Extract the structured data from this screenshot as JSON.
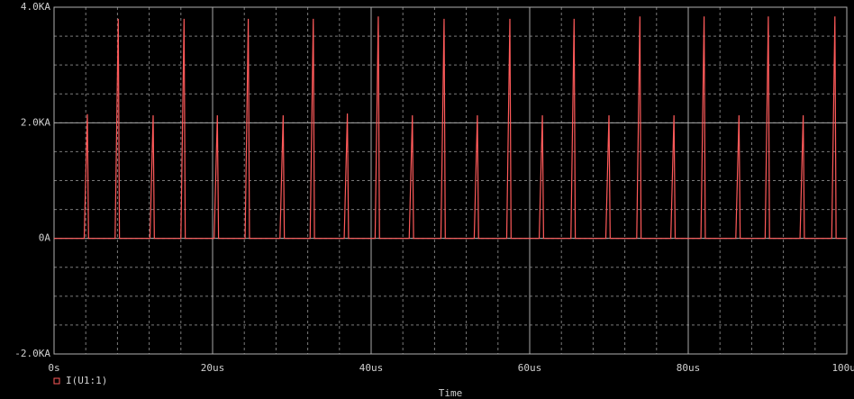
{
  "chart_data": {
    "type": "line",
    "xlabel": "Time",
    "x": [
      0,
      3.8,
      4.2,
      4.35,
      7.7,
      8.1,
      8.25,
      12.1,
      12.5,
      12.65,
      16.0,
      16.4,
      16.55,
      20.2,
      20.6,
      20.75,
      24.1,
      24.5,
      24.65,
      28.5,
      28.9,
      29.05,
      32.3,
      32.7,
      32.85,
      36.6,
      37.0,
      37.15,
      40.5,
      40.9,
      41.05,
      44.8,
      45.2,
      45.35,
      48.8,
      49.2,
      49.35,
      53.0,
      53.4,
      53.55,
      57.1,
      57.5,
      57.65,
      61.2,
      61.6,
      61.75,
      65.2,
      65.6,
      65.75,
      69.6,
      70.0,
      70.15,
      73.5,
      73.9,
      74.05,
      77.8,
      78.2,
      78.35,
      81.6,
      82.0,
      82.15,
      86.0,
      86.4,
      86.55,
      89.7,
      90.1,
      90.25,
      94.1,
      94.5,
      94.65,
      98.1,
      98.5,
      98.65,
      100
    ],
    "series": [
      {
        "name": "I(U1:1)",
        "color": "#ff5a5a",
        "values": [
          0,
          0,
          2.15,
          0,
          0,
          3.8,
          0,
          0,
          2.13,
          0,
          0,
          3.8,
          0,
          0,
          2.13,
          0,
          0,
          3.8,
          0,
          0,
          2.13,
          0,
          0,
          3.8,
          0,
          0,
          2.16,
          0,
          0,
          3.84,
          0,
          0,
          2.13,
          0,
          0,
          3.8,
          0,
          0,
          2.13,
          0,
          0,
          3.8,
          0,
          0,
          2.13,
          0,
          0,
          3.8,
          0,
          0,
          2.13,
          0,
          0,
          3.84,
          0,
          0,
          2.13,
          0,
          0,
          3.84,
          0,
          0,
          2.13,
          0,
          0,
          3.84,
          0,
          0,
          2.13,
          0,
          0,
          3.84,
          0,
          0
        ]
      }
    ],
    "xlim": [
      0,
      100
    ],
    "xticks": [
      {
        "value": 0,
        "label": "0s"
      },
      {
        "value": 20,
        "label": "20us"
      },
      {
        "value": 40,
        "label": "40us"
      },
      {
        "value": 60,
        "label": "60us"
      },
      {
        "value": 80,
        "label": "80us"
      },
      {
        "value": 100,
        "label": "100us"
      }
    ],
    "ylim": [
      -2,
      4
    ],
    "yticks": [
      {
        "value": -2,
        "label": "-2.0KA"
      },
      {
        "value": 0,
        "label": "0A"
      },
      {
        "value": 2,
        "label": "2.0KA"
      },
      {
        "value": 4,
        "label": "4.0KA"
      }
    ],
    "grid": true
  }
}
